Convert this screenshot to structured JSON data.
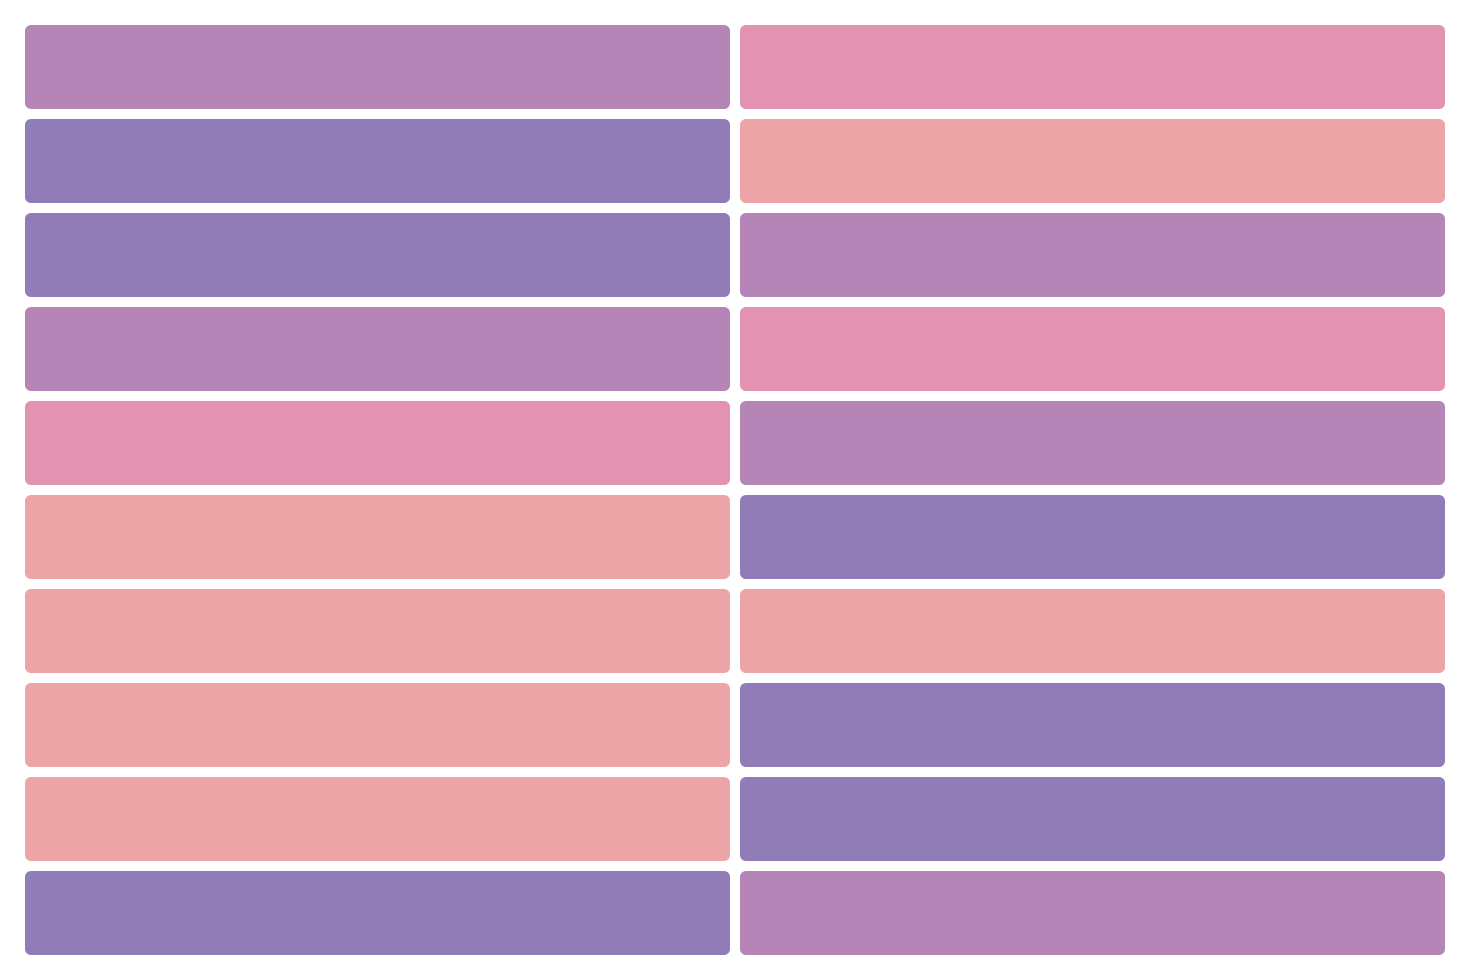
{
  "columns": [
    {
      "colors": [
        "#b685b8",
        "#907cb6",
        "#907cb6",
        "#b685b8",
        "#e492b2",
        "#eca4a6",
        "#eca4a6",
        "#eca4a6",
        "#eca4a6",
        "#907cb6"
      ]
    },
    {
      "colors": [
        "#e492b2",
        "#eca4a6",
        "#b685b8",
        "#e492b2",
        "#b685b8",
        "#907cb6",
        "#eca4a6",
        "#907cb6",
        "#907cb6",
        "#b685b8"
      ]
    }
  ]
}
